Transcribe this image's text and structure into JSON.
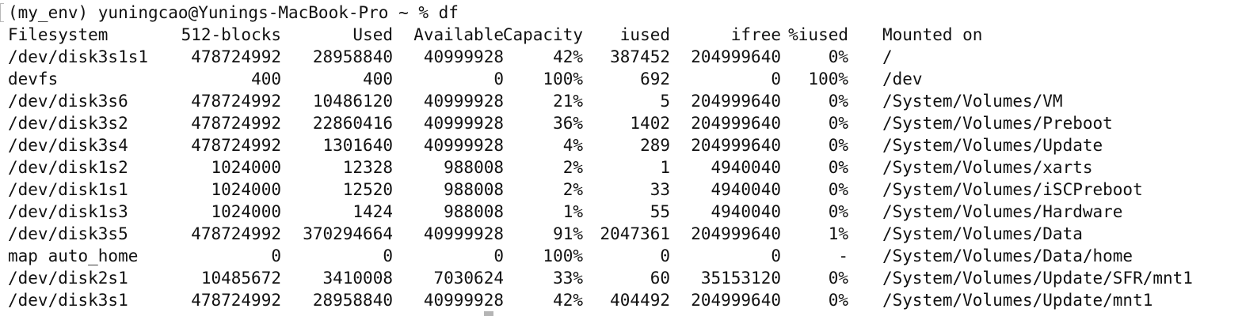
{
  "prompt": {
    "text": "(my_env) yuningcao@Yunings-MacBook-Pro ~ % df"
  },
  "table": {
    "headers": {
      "filesystem": "Filesystem",
      "blocks": "512-blocks",
      "used": "Used",
      "available": "Available",
      "capacity": "Capacity",
      "iused": "iused",
      "ifree": "ifree",
      "piused": "%iused",
      "mounted": "Mounted on"
    },
    "rows": [
      {
        "filesystem": "/dev/disk3s1s1",
        "blocks": "478724992",
        "used": "28958840",
        "available": "40999928",
        "capacity": "42%",
        "iused": "387452",
        "ifree": "204999640",
        "piused": "0%",
        "mounted": "/"
      },
      {
        "filesystem": "devfs",
        "blocks": "400",
        "used": "400",
        "available": "0",
        "capacity": "100%",
        "iused": "692",
        "ifree": "0",
        "piused": "100%",
        "mounted": "/dev"
      },
      {
        "filesystem": "/dev/disk3s6",
        "blocks": "478724992",
        "used": "10486120",
        "available": "40999928",
        "capacity": "21%",
        "iused": "5",
        "ifree": "204999640",
        "piused": "0%",
        "mounted": "/System/Volumes/VM"
      },
      {
        "filesystem": "/dev/disk3s2",
        "blocks": "478724992",
        "used": "22860416",
        "available": "40999928",
        "capacity": "36%",
        "iused": "1402",
        "ifree": "204999640",
        "piused": "0%",
        "mounted": "/System/Volumes/Preboot"
      },
      {
        "filesystem": "/dev/disk3s4",
        "blocks": "478724992",
        "used": "1301640",
        "available": "40999928",
        "capacity": "4%",
        "iused": "289",
        "ifree": "204999640",
        "piused": "0%",
        "mounted": "/System/Volumes/Update"
      },
      {
        "filesystem": "/dev/disk1s2",
        "blocks": "1024000",
        "used": "12328",
        "available": "988008",
        "capacity": "2%",
        "iused": "1",
        "ifree": "4940040",
        "piused": "0%",
        "mounted": "/System/Volumes/xarts"
      },
      {
        "filesystem": "/dev/disk1s1",
        "blocks": "1024000",
        "used": "12520",
        "available": "988008",
        "capacity": "2%",
        "iused": "33",
        "ifree": "4940040",
        "piused": "0%",
        "mounted": "/System/Volumes/iSCPreboot"
      },
      {
        "filesystem": "/dev/disk1s3",
        "blocks": "1024000",
        "used": "1424",
        "available": "988008",
        "capacity": "1%",
        "iused": "55",
        "ifree": "4940040",
        "piused": "0%",
        "mounted": "/System/Volumes/Hardware"
      },
      {
        "filesystem": "/dev/disk3s5",
        "blocks": "478724992",
        "used": "370294664",
        "available": "40999928",
        "capacity": "91%",
        "iused": "2047361",
        "ifree": "204999640",
        "piused": "1%",
        "mounted": "/System/Volumes/Data"
      },
      {
        "filesystem": "map auto_home",
        "blocks": "0",
        "used": "0",
        "available": "0",
        "capacity": "100%",
        "iused": "0",
        "ifree": "0",
        "piused": "-",
        "mounted": "/System/Volumes/Data/home"
      },
      {
        "filesystem": "/dev/disk2s1",
        "blocks": "10485672",
        "used": "3410008",
        "available": "7030624",
        "capacity": "33%",
        "iused": "60",
        "ifree": "35153120",
        "piused": "0%",
        "mounted": "/System/Volumes/Update/SFR/mnt1"
      },
      {
        "filesystem": "/dev/disk3s1",
        "blocks": "478724992",
        "used": "28958840",
        "available": "40999928",
        "capacity": "42%",
        "iused": "404492",
        "ifree": "204999640",
        "piused": "0%",
        "mounted": "/System/Volumes/Update/mnt1"
      }
    ]
  }
}
